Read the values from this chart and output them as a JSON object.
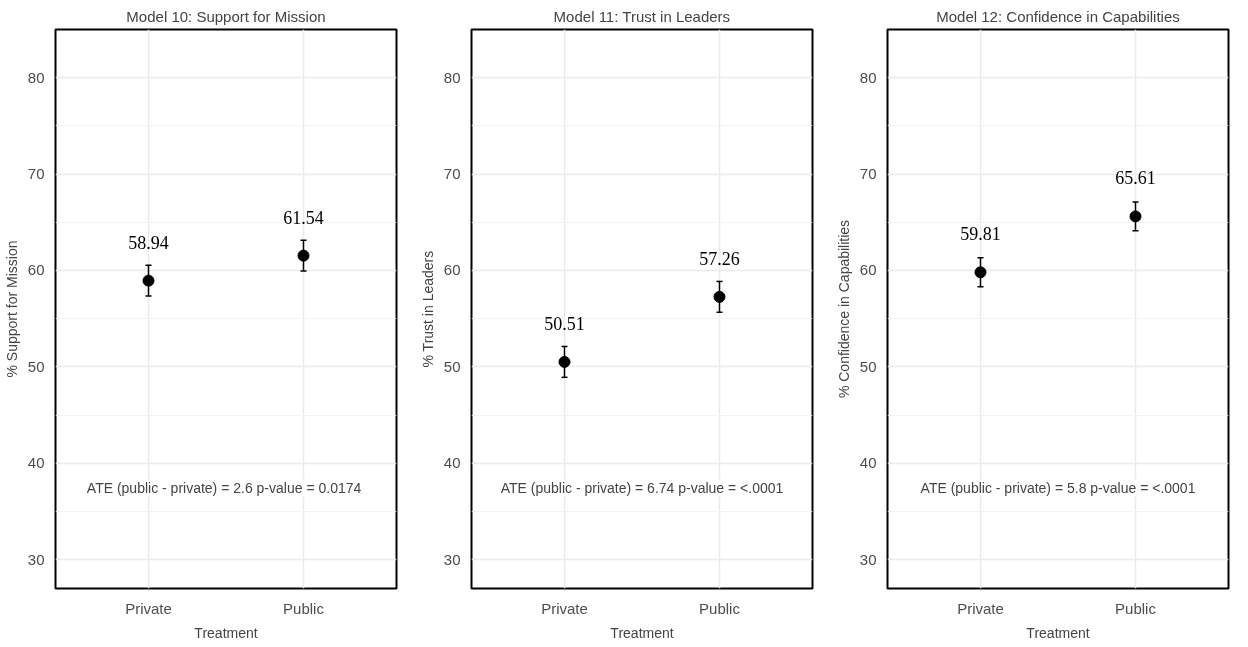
{
  "chart_data": [
    {
      "type": "scatter",
      "title": "Model 10: Support for Mission",
      "xlabel": "Treatment",
      "ylabel": "% Support for Mission",
      "categories": [
        "Private",
        "Public"
      ],
      "values": [
        58.94,
        61.54
      ],
      "errors": [
        1.6,
        1.6
      ],
      "color": "#000000",
      "marker": "circle",
      "data_labels": true,
      "ylim": [
        27,
        85
      ],
      "yticks": [
        30,
        40,
        50,
        60,
        70,
        80
      ],
      "grid": true,
      "annotations": [
        "ATE (public - private) = 2.6  p-value = 0.0174"
      ]
    },
    {
      "type": "scatter",
      "title": "Model 11: Trust in Leaders",
      "xlabel": "Treatment",
      "ylabel": "% Trust in Leaders",
      "categories": [
        "Private",
        "Public"
      ],
      "values": [
        50.51,
        57.26
      ],
      "errors": [
        1.6,
        1.6
      ],
      "color": "#000000",
      "marker": "circle",
      "data_labels": true,
      "ylim": [
        27,
        85
      ],
      "yticks": [
        30,
        40,
        50,
        60,
        70,
        80
      ],
      "grid": true,
      "annotations": [
        "ATE (public - private) = 6.74 p-value = <.0001"
      ]
    },
    {
      "type": "scatter",
      "title": "Model 12: Confidence in Capabilities",
      "xlabel": "Treatment",
      "ylabel": "% Confidence in Capabilities",
      "categories": [
        "Private",
        "Public"
      ],
      "values": [
        59.81,
        65.61
      ],
      "errors": [
        1.5,
        1.5
      ],
      "color": "#000000",
      "marker": "circle",
      "data_labels": true,
      "ylim": [
        27,
        85
      ],
      "yticks": [
        30,
        40,
        50,
        60,
        70,
        80
      ],
      "grid": true,
      "annotations": [
        "ATE (public - private) = 5.8 p-value = <.0001"
      ]
    }
  ]
}
